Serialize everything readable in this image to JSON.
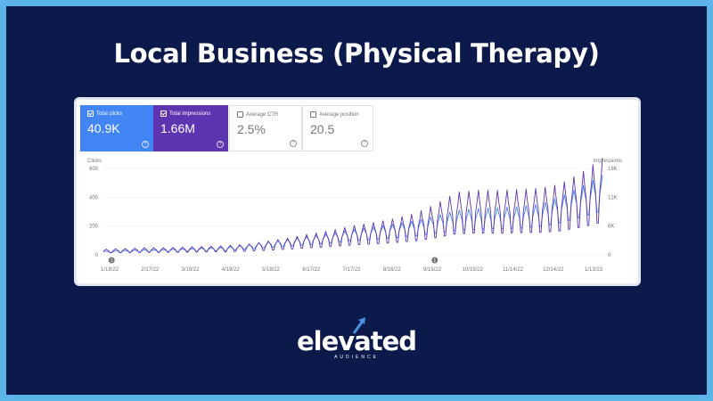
{
  "page": {
    "title": "Local Business (Physical Therapy)",
    "background_color": "#0c1a4b",
    "border_color": "#5bb5e8"
  },
  "metrics": [
    {
      "label": "Total clicks",
      "value": "40.9K",
      "checked": true,
      "color": "#4285f4"
    },
    {
      "label": "Total impressions",
      "value": "1.66M",
      "checked": true,
      "color": "#5e35b1"
    },
    {
      "label": "Average CTR",
      "value": "2.5%",
      "checked": false
    },
    {
      "label": "Average position",
      "value": "20.5",
      "checked": false
    }
  ],
  "chart_data": {
    "type": "line",
    "ylabel_left": "Clicks",
    "ylabel_right": "Impressions",
    "y_left_ticks": [
      "600",
      "400",
      "200",
      "0"
    ],
    "y_left_range": [
      0,
      600
    ],
    "y_right_ticks": [
      "18K",
      "12K",
      "6K",
      "0"
    ],
    "y_right_range": [
      0,
      18000
    ],
    "x_ticks": [
      "1/18/22",
      "2/17/22",
      "3/19/22",
      "4/18/22",
      "5/18/22",
      "6/17/22",
      "7/17/22",
      "8/16/22",
      "9/15/22",
      "10/15/22",
      "11/14/22",
      "12/14/22",
      "1/13/23"
    ],
    "x_range": [
      "2022-01-15",
      "2023-01-16"
    ],
    "grid": true,
    "annotation_markers": [
      {
        "date": "2022-01-21",
        "label": "1"
      },
      {
        "date": "2022-09-15",
        "label": "1"
      }
    ],
    "series": [
      {
        "name": "Total clicks",
        "axis": "left",
        "color": "#4285f4",
        "points": [
          [
            "2022-01-15",
            20
          ],
          [
            "2022-02-01",
            25
          ],
          [
            "2022-02-15",
            28
          ],
          [
            "2022-03-01",
            30
          ],
          [
            "2022-03-15",
            33
          ],
          [
            "2022-04-01",
            38
          ],
          [
            "2022-04-15",
            42
          ],
          [
            "2022-05-01",
            55
          ],
          [
            "2022-05-15",
            70
          ],
          [
            "2022-06-01",
            85
          ],
          [
            "2022-06-15",
            100
          ],
          [
            "2022-07-01",
            115
          ],
          [
            "2022-07-15",
            135
          ],
          [
            "2022-08-01",
            150
          ],
          [
            "2022-08-15",
            165
          ],
          [
            "2022-09-01",
            185
          ],
          [
            "2022-09-15",
            210
          ],
          [
            "2022-10-01",
            240
          ],
          [
            "2022-10-15",
            250
          ],
          [
            "2022-11-01",
            255
          ],
          [
            "2022-11-15",
            260
          ],
          [
            "2022-12-01",
            275
          ],
          [
            "2022-12-15",
            310
          ],
          [
            "2023-01-01",
            370
          ],
          [
            "2023-01-16",
            430
          ]
        ]
      },
      {
        "name": "Total impressions",
        "axis": "right",
        "color": "#5e35b1",
        "points": [
          [
            "2022-01-15",
            800
          ],
          [
            "2022-02-01",
            900
          ],
          [
            "2022-02-15",
            1000
          ],
          [
            "2022-03-01",
            1000
          ],
          [
            "2022-03-15",
            1100
          ],
          [
            "2022-04-01",
            1200
          ],
          [
            "2022-04-15",
            1300
          ],
          [
            "2022-05-01",
            1500
          ],
          [
            "2022-05-15",
            1900
          ],
          [
            "2022-06-01",
            2400
          ],
          [
            "2022-06-15",
            2900
          ],
          [
            "2022-07-01",
            3400
          ],
          [
            "2022-07-15",
            4000
          ],
          [
            "2022-08-01",
            4500
          ],
          [
            "2022-08-15",
            5000
          ],
          [
            "2022-09-01",
            5800
          ],
          [
            "2022-09-15",
            7000
          ],
          [
            "2022-10-01",
            8700
          ],
          [
            "2022-10-15",
            9000
          ],
          [
            "2022-11-01",
            9000
          ],
          [
            "2022-11-15",
            9100
          ],
          [
            "2022-12-01",
            9300
          ],
          [
            "2022-12-15",
            9800
          ],
          [
            "2023-01-01",
            11500
          ],
          [
            "2023-01-16",
            13500
          ]
        ]
      }
    ]
  },
  "logo": {
    "word": "elevated",
    "subtitle": "AUDIENCE"
  }
}
